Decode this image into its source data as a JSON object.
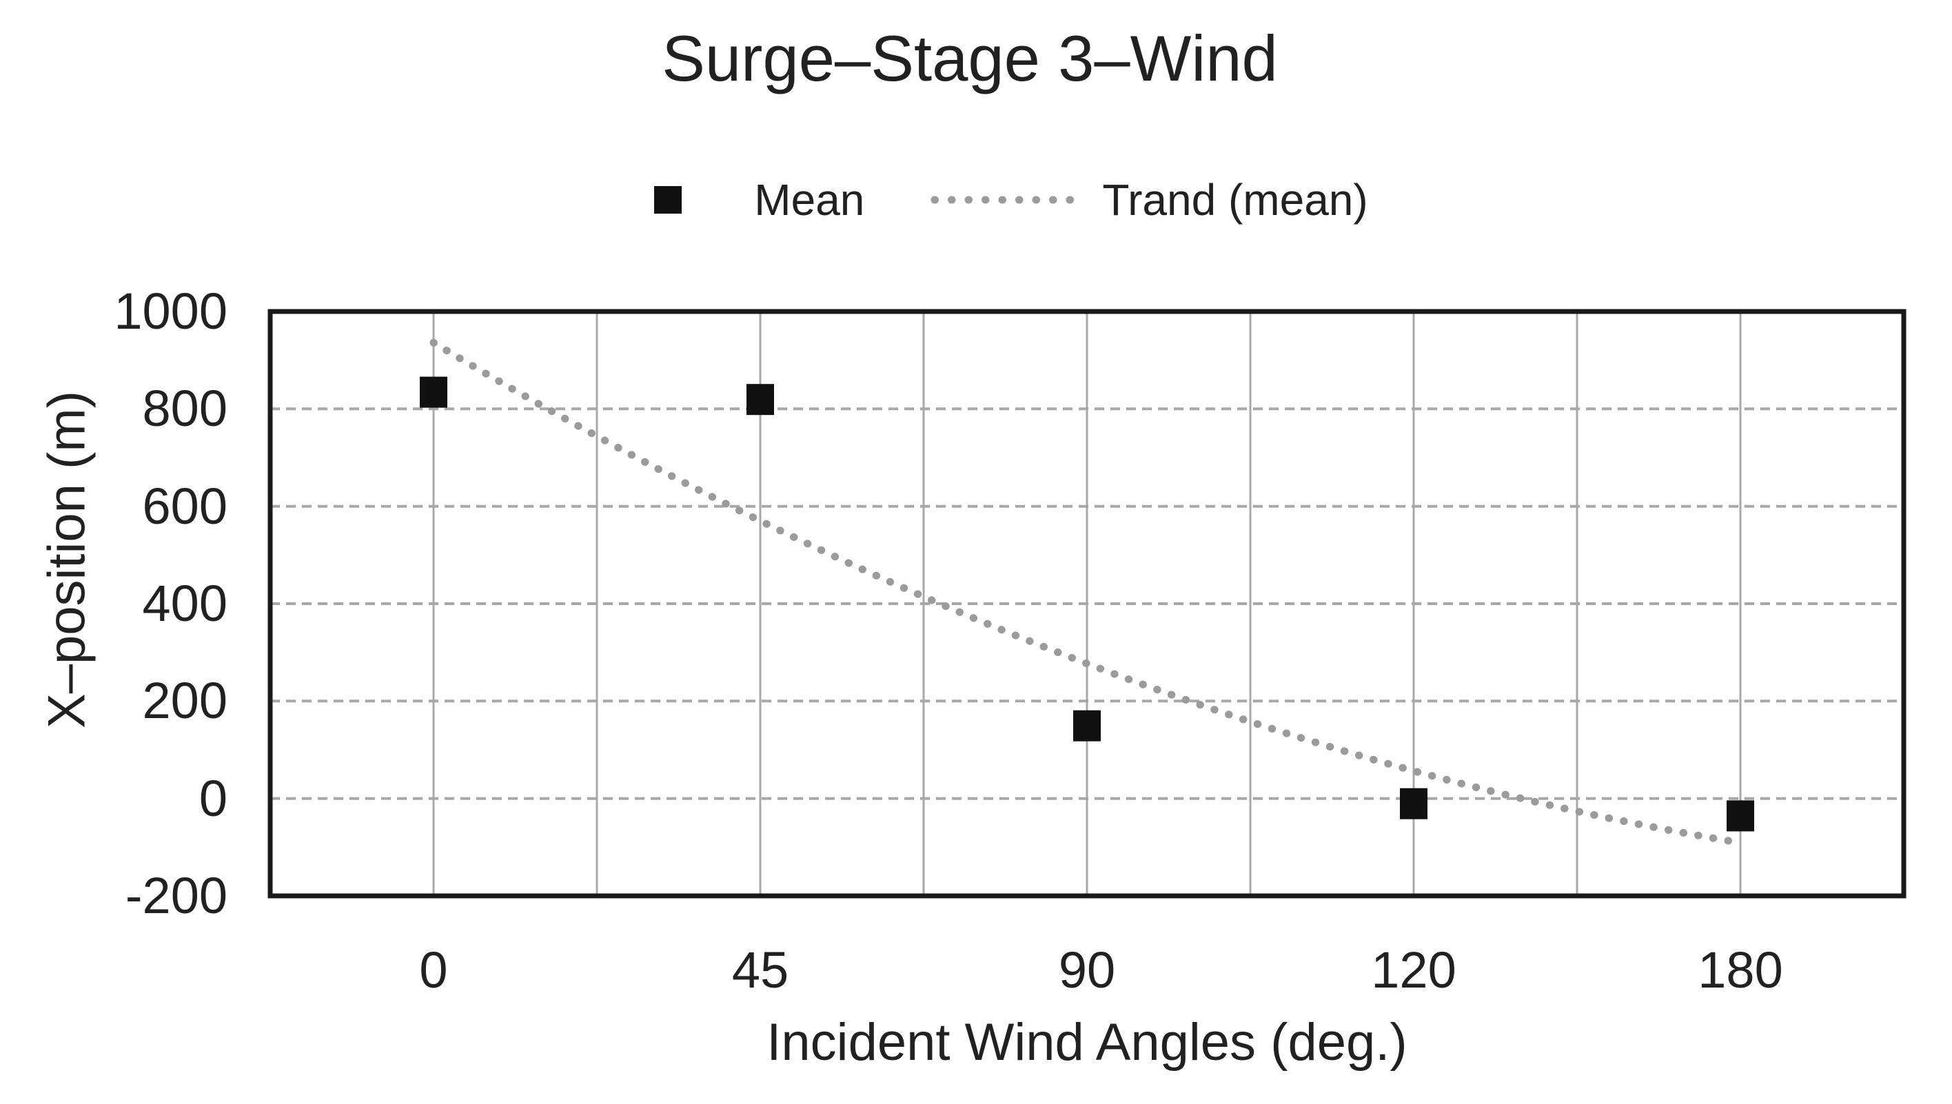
{
  "chart_data": {
    "type": "scatter",
    "title": "Surge–Stage 3–Wind",
    "xlabel": "Incident Wind Angles (deg.)",
    "ylabel": "X–position (m)",
    "categories": [
      "0",
      "45",
      "90",
      "120",
      "180"
    ],
    "series": [
      {
        "name": "Mean",
        "marker": "square",
        "values": [
          835,
          820,
          150,
          -10,
          -35
        ]
      }
    ],
    "trend": {
      "name": "Trand (mean)",
      "style": "dotted",
      "values": [
        936,
        577,
        277,
        57,
        -91
      ]
    },
    "ylim": [
      -200,
      1000
    ],
    "yticks": [
      1000,
      800,
      600,
      400,
      200,
      0,
      -200
    ],
    "grid": true,
    "legend_position": "top",
    "colors": {
      "marker": "#111111",
      "trend": "#9b9b9b",
      "grid": "#a8a8a8",
      "border": "#1a1a1a"
    }
  },
  "legend": {
    "mean_label": "Mean",
    "trend_label": "Trand (mean)"
  }
}
